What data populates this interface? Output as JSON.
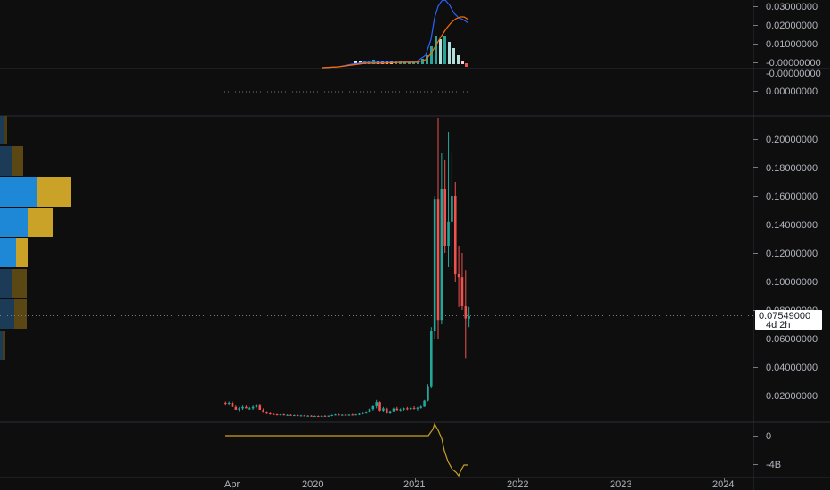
{
  "colors": {
    "background": "#0e0e0e",
    "up": "#26a69a",
    "down": "#ef5350",
    "axis_text": "#b2b5be",
    "divider": "#2a2e39",
    "volume_blue": "#2196f3",
    "volume_gold": "#c9a227",
    "macd_line": "#2962ff",
    "signal_line": "#ff6d00",
    "indicator_line": "#c9a227"
  },
  "price_axis": {
    "ticks": [
      "0.20000000",
      "0.18000000",
      "0.16000000",
      "0.14000000",
      "0.12000000",
      "0.10000000",
      "0.08000000",
      "0.06000000",
      "0.04000000",
      "0.02000000"
    ],
    "last_price": "0.07549000",
    "countdown": "4d 2h"
  },
  "macd_axis": {
    "ticks": [
      "0.03000000",
      "0.02000000",
      "0.01000000",
      "-0.00000000"
    ]
  },
  "second_axis": {
    "ticks": [
      "-0.00000000",
      "0.00000000"
    ]
  },
  "bottom_axis": {
    "ticks": [
      "0",
      "-4B"
    ]
  },
  "time_axis": {
    "labels": [
      "Apr",
      "2020",
      "2021",
      "2022",
      "2023",
      "2024"
    ]
  },
  "chart_data": {
    "type": "candlestick",
    "interval": "weekly",
    "ylim": [
      0,
      0.215
    ],
    "time_labels": [
      "Apr",
      "2020",
      "2021",
      "2022",
      "2023",
      "2024"
    ],
    "candles": [
      [
        0.015,
        0.016,
        0.013,
        0.014
      ],
      [
        0.014,
        0.016,
        0.013,
        0.015
      ],
      [
        0.015,
        0.016,
        0.012,
        0.012
      ],
      [
        0.012,
        0.013,
        0.01,
        0.01
      ],
      [
        0.01,
        0.012,
        0.009,
        0.011
      ],
      [
        0.011,
        0.013,
        0.01,
        0.012
      ],
      [
        0.012,
        0.013,
        0.011,
        0.011
      ],
      [
        0.011,
        0.012,
        0.01,
        0.011
      ],
      [
        0.011,
        0.013,
        0.01,
        0.012
      ],
      [
        0.012,
        0.014,
        0.011,
        0.013
      ],
      [
        0.013,
        0.014,
        0.01,
        0.01
      ],
      [
        0.01,
        0.011,
        0.008,
        0.008
      ],
      [
        0.008,
        0.009,
        0.007,
        0.0075
      ],
      [
        0.0075,
        0.008,
        0.0065,
        0.007
      ],
      [
        0.007,
        0.0075,
        0.0065,
        0.0068
      ],
      [
        0.0068,
        0.0072,
        0.006,
        0.0065
      ],
      [
        0.0065,
        0.007,
        0.006,
        0.0068
      ],
      [
        0.0068,
        0.0072,
        0.006,
        0.0062
      ],
      [
        0.0062,
        0.0068,
        0.0058,
        0.0064
      ],
      [
        0.0064,
        0.0068,
        0.0058,
        0.006
      ],
      [
        0.006,
        0.0066,
        0.0056,
        0.0062
      ],
      [
        0.0062,
        0.0066,
        0.0056,
        0.0058
      ],
      [
        0.0058,
        0.0064,
        0.0054,
        0.006
      ],
      [
        0.006,
        0.0064,
        0.0054,
        0.0056
      ],
      [
        0.0056,
        0.0062,
        0.0052,
        0.0058
      ],
      [
        0.0058,
        0.0062,
        0.0052,
        0.0055
      ],
      [
        0.0055,
        0.006,
        0.005,
        0.0056
      ],
      [
        0.0056,
        0.006,
        0.005,
        0.0054
      ],
      [
        0.0054,
        0.006,
        0.005,
        0.0057
      ],
      [
        0.0057,
        0.0062,
        0.0052,
        0.0055
      ],
      [
        0.0055,
        0.006,
        0.005,
        0.0058
      ],
      [
        0.0058,
        0.0066,
        0.0055,
        0.0063
      ],
      [
        0.0063,
        0.007,
        0.006,
        0.0067
      ],
      [
        0.0067,
        0.0072,
        0.006,
        0.0062
      ],
      [
        0.0062,
        0.0068,
        0.0058,
        0.0065
      ],
      [
        0.0065,
        0.007,
        0.006,
        0.0063
      ],
      [
        0.0063,
        0.0068,
        0.0058,
        0.0066
      ],
      [
        0.0066,
        0.0072,
        0.006,
        0.0064
      ],
      [
        0.0064,
        0.007,
        0.006,
        0.0068
      ],
      [
        0.0068,
        0.0075,
        0.0062,
        0.0072
      ],
      [
        0.0072,
        0.008,
        0.0068,
        0.0076
      ],
      [
        0.0076,
        0.009,
        0.0072,
        0.0085
      ],
      [
        0.0085,
        0.011,
        0.008,
        0.0105
      ],
      [
        0.0105,
        0.013,
        0.0095,
        0.0125
      ],
      [
        0.0125,
        0.017,
        0.011,
        0.0155
      ],
      [
        0.0155,
        0.016,
        0.009,
        0.0095
      ],
      [
        0.0095,
        0.012,
        0.0085,
        0.011
      ],
      [
        0.011,
        0.012,
        0.007,
        0.0075
      ],
      [
        0.0075,
        0.0095,
        0.007,
        0.009
      ],
      [
        0.009,
        0.0115,
        0.0085,
        0.0108
      ],
      [
        0.0108,
        0.012,
        0.0095,
        0.0098
      ],
      [
        0.0098,
        0.011,
        0.009,
        0.0102
      ],
      [
        0.0102,
        0.0115,
        0.0095,
        0.011
      ],
      [
        0.011,
        0.012,
        0.0098,
        0.0104
      ],
      [
        0.0104,
        0.012,
        0.0098,
        0.0113
      ],
      [
        0.0113,
        0.0125,
        0.0102,
        0.0109
      ],
      [
        0.0109,
        0.012,
        0.0095,
        0.0114
      ],
      [
        0.0114,
        0.013,
        0.0108,
        0.0122
      ],
      [
        0.0122,
        0.017,
        0.012,
        0.0165
      ],
      [
        0.0165,
        0.028,
        0.016,
        0.0265
      ],
      [
        0.0265,
        0.068,
        0.025,
        0.065
      ],
      [
        0.065,
        0.16,
        0.06,
        0.158
      ],
      [
        0.158,
        0.215,
        0.06,
        0.073
      ],
      [
        0.073,
        0.19,
        0.07,
        0.165
      ],
      [
        0.165,
        0.185,
        0.12,
        0.125
      ],
      [
        0.125,
        0.205,
        0.11,
        0.142
      ],
      [
        0.142,
        0.19,
        0.11,
        0.16
      ],
      [
        0.16,
        0.17,
        0.1,
        0.105
      ],
      [
        0.105,
        0.125,
        0.082,
        0.103
      ],
      [
        0.103,
        0.12,
        0.08,
        0.083
      ],
      [
        0.083,
        0.108,
        0.046,
        0.074
      ],
      [
        0.074,
        0.082,
        0.068,
        0.0755
      ]
    ]
  }
}
